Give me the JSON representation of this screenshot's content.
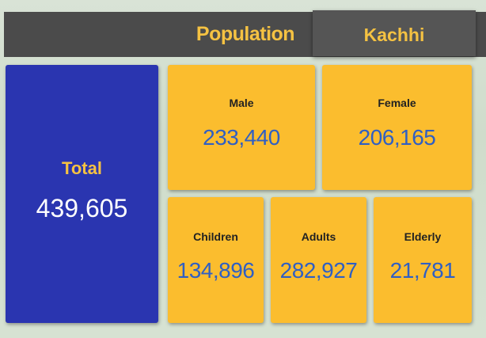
{
  "header": {
    "title": "Population",
    "region": "Kachhi"
  },
  "total": {
    "label": "Total",
    "value": "439,605"
  },
  "cards": [
    {
      "label": "Male",
      "value": "233,440"
    },
    {
      "label": "Female",
      "value": "206,165"
    },
    {
      "label": "Children",
      "value": "134,896"
    },
    {
      "label": "Adults",
      "value": "282,927"
    },
    {
      "label": "Elderly",
      "value": "21,781"
    }
  ]
}
